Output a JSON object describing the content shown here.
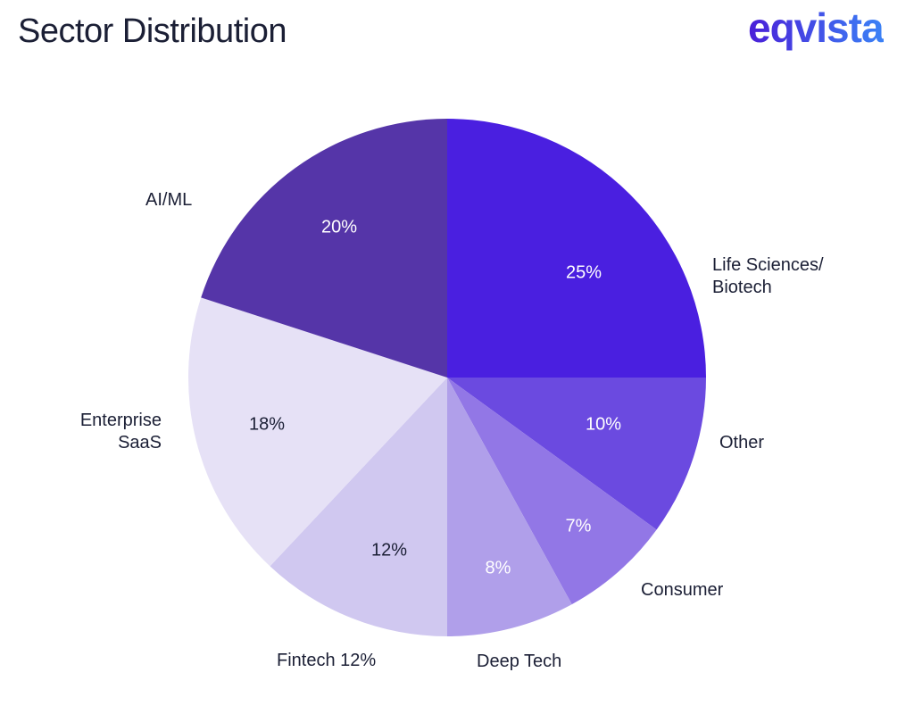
{
  "title": "Sector Distribution",
  "logo": "eqvista",
  "chart_data": {
    "type": "pie",
    "title": "Sector Distribution",
    "slices": [
      {
        "label": "Life Sciences/\nBiotech",
        "value": 25,
        "value_label": "25%",
        "color": "#4a1fe0",
        "text_color": "#ffffff"
      },
      {
        "label": "Other",
        "value": 10,
        "value_label": "10%",
        "color": "#6b4ae0",
        "text_color": "#ffffff"
      },
      {
        "label": "Consumer",
        "value": 7,
        "value_label": "7%",
        "color": "#9277e6",
        "text_color": "#ffffff"
      },
      {
        "label": "Deep Tech",
        "value": 8,
        "value_label": "8%",
        "color": "#b09fea",
        "text_color": "#ffffff"
      },
      {
        "label": "Fintech 12%",
        "value": 12,
        "value_label": "12%",
        "color": "#d0c8f0",
        "text_color": "#1b1f35"
      },
      {
        "label": "Enterprise\nSaaS",
        "value": 18,
        "value_label": "18%",
        "color": "#e6e1f6",
        "text_color": "#1b1f35"
      },
      {
        "label": "AI/ML",
        "value": 20,
        "value_label": "20%",
        "color": "#5535a8",
        "text_color": "#ffffff"
      }
    ],
    "start_angle": "12 o'clock",
    "direction": "clockwise"
  }
}
